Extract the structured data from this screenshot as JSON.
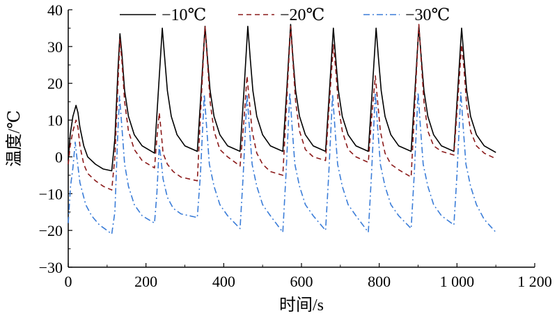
{
  "chart_data": {
    "type": "line",
    "title": "",
    "xlabel": "时间/s",
    "ylabel": "温度/℃",
    "xlim": [
      0,
      1200
    ],
    "ylim": [
      -30,
      40
    ],
    "xticks": [
      0,
      200,
      400,
      600,
      800,
      1000,
      1200
    ],
    "xtick_labels": [
      "0",
      "200",
      "400",
      "600",
      "800",
      "1 000",
      "1 200"
    ],
    "yticks": [
      -30,
      -20,
      -10,
      0,
      10,
      20,
      30,
      40
    ],
    "ytick_labels": [
      "−30",
      "−20",
      "−10",
      "0",
      "10",
      "20",
      "30",
      "40"
    ],
    "grid": false,
    "legend_position": "top",
    "series": [
      {
        "name": "−10℃",
        "color": "#000000",
        "dash": "solid",
        "points": [
          [
            0,
            -1
          ],
          [
            5,
            6
          ],
          [
            12,
            11
          ],
          [
            20,
            14
          ],
          [
            25,
            12
          ],
          [
            30,
            8
          ],
          [
            40,
            3
          ],
          [
            50,
            0
          ],
          [
            70,
            -2
          ],
          [
            90,
            -3.3
          ],
          [
            112,
            -3.8
          ],
          [
            120,
            5
          ],
          [
            128,
            24
          ],
          [
            133,
            33.5
          ],
          [
            138,
            28
          ],
          [
            145,
            18
          ],
          [
            155,
            11
          ],
          [
            170,
            6
          ],
          [
            190,
            3
          ],
          [
            222,
            1
          ],
          [
            232,
            18
          ],
          [
            242,
            35
          ],
          [
            248,
            27
          ],
          [
            255,
            18
          ],
          [
            265,
            11
          ],
          [
            280,
            6
          ],
          [
            300,
            3
          ],
          [
            332,
            1.5
          ],
          [
            342,
            18
          ],
          [
            352,
            35.5
          ],
          [
            358,
            27
          ],
          [
            365,
            18
          ],
          [
            375,
            11
          ],
          [
            390,
            6
          ],
          [
            410,
            3
          ],
          [
            442,
            1.5
          ],
          [
            452,
            18
          ],
          [
            462,
            35.5
          ],
          [
            468,
            27
          ],
          [
            475,
            18
          ],
          [
            485,
            11
          ],
          [
            500,
            6
          ],
          [
            520,
            3
          ],
          [
            552,
            1.5
          ],
          [
            562,
            18
          ],
          [
            572,
            36
          ],
          [
            578,
            27
          ],
          [
            585,
            18
          ],
          [
            595,
            11
          ],
          [
            610,
            6
          ],
          [
            630,
            3
          ],
          [
            662,
            1.5
          ],
          [
            672,
            18
          ],
          [
            682,
            35
          ],
          [
            688,
            27
          ],
          [
            695,
            18
          ],
          [
            705,
            11
          ],
          [
            720,
            6
          ],
          [
            740,
            3
          ],
          [
            772,
            1.5
          ],
          [
            782,
            18
          ],
          [
            792,
            35
          ],
          [
            798,
            27
          ],
          [
            805,
            18
          ],
          [
            815,
            11
          ],
          [
            830,
            6
          ],
          [
            850,
            3
          ],
          [
            882,
            1.5
          ],
          [
            892,
            18
          ],
          [
            902,
            35.5
          ],
          [
            908,
            27
          ],
          [
            915,
            18
          ],
          [
            925,
            11
          ],
          [
            940,
            6
          ],
          [
            960,
            3
          ],
          [
            992,
            1.5
          ],
          [
            1002,
            18
          ],
          [
            1012,
            35
          ],
          [
            1018,
            27
          ],
          [
            1025,
            18
          ],
          [
            1035,
            11
          ],
          [
            1050,
            6
          ],
          [
            1070,
            3
          ],
          [
            1100,
            1.2
          ]
        ]
      },
      {
        "name": "−20℃",
        "color": "#8B1A1A",
        "dash": "dashed",
        "points": [
          [
            0,
            -2
          ],
          [
            5,
            3
          ],
          [
            12,
            7
          ],
          [
            20,
            10
          ],
          [
            25,
            8
          ],
          [
            30,
            3
          ],
          [
            40,
            -2
          ],
          [
            50,
            -4.5
          ],
          [
            70,
            -6.5
          ],
          [
            90,
            -8
          ],
          [
            112,
            -9
          ],
          [
            120,
            0
          ],
          [
            128,
            20
          ],
          [
            133,
            32
          ],
          [
            138,
            26
          ],
          [
            145,
            15
          ],
          [
            155,
            7
          ],
          [
            170,
            2
          ],
          [
            190,
            -1
          ],
          [
            222,
            -3
          ],
          [
            228,
            5
          ],
          [
            234,
            12
          ],
          [
            238,
            8
          ],
          [
            244,
            1
          ],
          [
            255,
            -2
          ],
          [
            270,
            -4
          ],
          [
            290,
            -5.5
          ],
          [
            332,
            -6.5
          ],
          [
            342,
            15
          ],
          [
            352,
            35.5
          ],
          [
            358,
            26
          ],
          [
            365,
            15
          ],
          [
            375,
            7
          ],
          [
            390,
            2
          ],
          [
            410,
            0
          ],
          [
            442,
            -2.5
          ],
          [
            452,
            10
          ],
          [
            460,
            22
          ],
          [
            466,
            15
          ],
          [
            473,
            7
          ],
          [
            485,
            1
          ],
          [
            500,
            -2
          ],
          [
            520,
            -4
          ],
          [
            552,
            -5
          ],
          [
            562,
            15
          ],
          [
            572,
            35.5
          ],
          [
            578,
            26
          ],
          [
            585,
            15
          ],
          [
            595,
            7
          ],
          [
            610,
            2
          ],
          [
            630,
            0
          ],
          [
            662,
            -1
          ],
          [
            672,
            15
          ],
          [
            682,
            30.5
          ],
          [
            688,
            24
          ],
          [
            695,
            14
          ],
          [
            705,
            7
          ],
          [
            720,
            2
          ],
          [
            740,
            0
          ],
          [
            772,
            -1.5
          ],
          [
            780,
            10
          ],
          [
            790,
            22
          ],
          [
            796,
            15
          ],
          [
            803,
            7
          ],
          [
            815,
            1
          ],
          [
            830,
            -2
          ],
          [
            850,
            -3.5
          ],
          [
            882,
            -5.5
          ],
          [
            892,
            15
          ],
          [
            902,
            36
          ],
          [
            908,
            26
          ],
          [
            915,
            15
          ],
          [
            925,
            7
          ],
          [
            940,
            3
          ],
          [
            960,
            1.5
          ],
          [
            992,
            0.5
          ],
          [
            1002,
            15
          ],
          [
            1012,
            30.5
          ],
          [
            1018,
            24
          ],
          [
            1025,
            14
          ],
          [
            1035,
            7
          ],
          [
            1050,
            3
          ],
          [
            1070,
            1
          ],
          [
            1100,
            -0.5
          ]
        ]
      },
      {
        "name": "−30℃",
        "color": "#3B7DD8",
        "dash": "dashdot",
        "points": [
          [
            0,
            -18
          ],
          [
            6,
            -8
          ],
          [
            12,
            -3
          ],
          [
            18,
            4
          ],
          [
            22,
            0
          ],
          [
            30,
            -7
          ],
          [
            45,
            -13
          ],
          [
            60,
            -16
          ],
          [
            80,
            -18.5
          ],
          [
            100,
            -20
          ],
          [
            112,
            -21
          ],
          [
            120,
            -15
          ],
          [
            127,
            5
          ],
          [
            132,
            16.5
          ],
          [
            138,
            8
          ],
          [
            145,
            -2
          ],
          [
            155,
            -8
          ],
          [
            170,
            -13
          ],
          [
            190,
            -16
          ],
          [
            222,
            -18
          ],
          [
            228,
            -10
          ],
          [
            234,
            3
          ],
          [
            238,
            0
          ],
          [
            244,
            -6
          ],
          [
            255,
            -11
          ],
          [
            270,
            -14
          ],
          [
            290,
            -15.5
          ],
          [
            332,
            -16.5
          ],
          [
            340,
            -5
          ],
          [
            350,
            17
          ],
          [
            356,
            8
          ],
          [
            363,
            -2
          ],
          [
            375,
            -8
          ],
          [
            390,
            -13
          ],
          [
            410,
            -16
          ],
          [
            442,
            -19.5
          ],
          [
            450,
            -5
          ],
          [
            460,
            17
          ],
          [
            466,
            8
          ],
          [
            473,
            -2
          ],
          [
            485,
            -8
          ],
          [
            500,
            -13
          ],
          [
            520,
            -16
          ],
          [
            552,
            -20.5
          ],
          [
            560,
            -5
          ],
          [
            570,
            17.5
          ],
          [
            576,
            8
          ],
          [
            583,
            -2
          ],
          [
            595,
            -8
          ],
          [
            610,
            -13
          ],
          [
            630,
            -16
          ],
          [
            662,
            -20
          ],
          [
            670,
            -5
          ],
          [
            680,
            17
          ],
          [
            686,
            8
          ],
          [
            693,
            -2
          ],
          [
            705,
            -8
          ],
          [
            720,
            -13
          ],
          [
            740,
            -16
          ],
          [
            772,
            -20.5
          ],
          [
            780,
            -5
          ],
          [
            790,
            17.5
          ],
          [
            796,
            8
          ],
          [
            803,
            -2
          ],
          [
            815,
            -8
          ],
          [
            830,
            -13
          ],
          [
            850,
            -16
          ],
          [
            882,
            -19.5
          ],
          [
            890,
            -5
          ],
          [
            900,
            17.5
          ],
          [
            906,
            8
          ],
          [
            913,
            -2
          ],
          [
            925,
            -8
          ],
          [
            940,
            -13
          ],
          [
            960,
            -16
          ],
          [
            992,
            -18.5
          ],
          [
            1000,
            -5
          ],
          [
            1010,
            17.5
          ],
          [
            1016,
            8
          ],
          [
            1023,
            -2
          ],
          [
            1035,
            -8
          ],
          [
            1050,
            -13
          ],
          [
            1070,
            -17
          ],
          [
            1100,
            -20.5
          ]
        ]
      }
    ]
  }
}
